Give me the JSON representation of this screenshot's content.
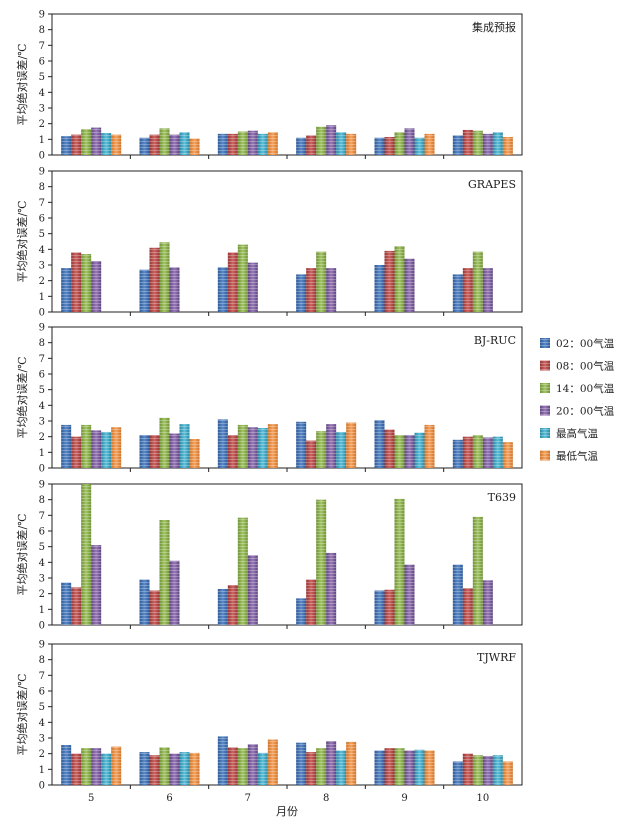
{
  "chart_data": {
    "type": "bar",
    "xlabel": "月份",
    "ylabel": "平均绝对误差/℃",
    "ylim": [
      0,
      9
    ],
    "yticks": [
      "0",
      "1",
      "2",
      "3",
      "4",
      "5",
      "6",
      "7",
      "8",
      "9"
    ],
    "categories": [
      "5",
      "6",
      "7",
      "8",
      "9",
      "10"
    ],
    "series_names": [
      "02：00气温",
      "08：00气温",
      "14：00气温",
      "20：00气温",
      "最高气温",
      "最低气温"
    ],
    "colors": {
      "c0": "#3f6fb0",
      "c1": "#b04a48",
      "c2": "#86aa48",
      "c3": "#7a5e9c",
      "c4": "#3ea3bf",
      "c5": "#e58a3f"
    },
    "panels": [
      {
        "title": "集成预报",
        "series": [
          {
            "name": "02：00气温",
            "values": [
              1.2,
              1.1,
              1.35,
              1.1,
              1.1,
              1.25
            ]
          },
          {
            "name": "08：00气温",
            "values": [
              1.3,
              1.3,
              1.35,
              1.25,
              1.15,
              1.6
            ]
          },
          {
            "name": "14：00气温",
            "values": [
              1.65,
              1.7,
              1.5,
              1.8,
              1.45,
              1.55
            ]
          },
          {
            "name": "20：00气温",
            "values": [
              1.75,
              1.3,
              1.55,
              1.9,
              1.7,
              1.35
            ]
          },
          {
            "name": "最高气温",
            "values": [
              1.4,
              1.45,
              1.35,
              1.45,
              1.1,
              1.45
            ]
          },
          {
            "name": "最低气温",
            "values": [
              1.3,
              1.05,
              1.45,
              1.35,
              1.35,
              1.15
            ]
          }
        ]
      },
      {
        "title": "GRAPES",
        "series": [
          {
            "name": "02：00气温",
            "values": [
              2.8,
              2.7,
              2.85,
              2.4,
              3.0,
              2.4
            ]
          },
          {
            "name": "08：00气温",
            "values": [
              3.8,
              4.1,
              3.8,
              2.8,
              3.9,
              2.8
            ]
          },
          {
            "name": "14：00气温",
            "values": [
              3.7,
              4.45,
              4.3,
              3.85,
              4.2,
              3.85
            ]
          },
          {
            "name": "20：00气温",
            "values": [
              3.25,
              2.85,
              3.15,
              2.8,
              3.4,
              2.8
            ]
          },
          {
            "name": "最高气温",
            "values": [
              null,
              null,
              null,
              null,
              null,
              null
            ]
          },
          {
            "name": "最低气温",
            "values": [
              null,
              null,
              null,
              null,
              null,
              null
            ]
          }
        ]
      },
      {
        "title": "BJ-RUC",
        "series": [
          {
            "name": "02：00气温",
            "values": [
              2.75,
              2.1,
              3.1,
              2.95,
              3.05,
              1.8
            ]
          },
          {
            "name": "08：00气温",
            "values": [
              2.0,
              2.1,
              2.1,
              1.75,
              2.45,
              2.0
            ]
          },
          {
            "name": "14：00气温",
            "values": [
              2.75,
              3.2,
              2.75,
              2.35,
              2.1,
              2.1
            ]
          },
          {
            "name": "20：00气温",
            "values": [
              2.4,
              2.2,
              2.6,
              2.8,
              2.1,
              1.95
            ]
          },
          {
            "name": "最高气温",
            "values": [
              2.3,
              2.8,
              2.55,
              2.3,
              2.25,
              2.0
            ]
          },
          {
            "name": "最低气温",
            "values": [
              2.6,
              1.85,
              2.8,
              2.9,
              2.75,
              1.65
            ]
          }
        ]
      },
      {
        "title": "T639",
        "series": [
          {
            "name": "02：00气温",
            "values": [
              2.7,
              2.9,
              2.3,
              1.7,
              2.2,
              3.85
            ]
          },
          {
            "name": "08：00气温",
            "values": [
              2.4,
              2.2,
              2.55,
              2.9,
              2.25,
              2.35
            ]
          },
          {
            "name": "14：00气温",
            "values": [
              9.0,
              6.7,
              6.85,
              8.0,
              8.05,
              6.9
            ]
          },
          {
            "name": "20：00气温",
            "values": [
              5.1,
              4.1,
              4.45,
              4.6,
              3.85,
              2.85
            ]
          },
          {
            "name": "最高气温",
            "values": [
              null,
              null,
              null,
              null,
              null,
              null
            ]
          },
          {
            "name": "最低气温",
            "values": [
              null,
              null,
              null,
              null,
              null,
              null
            ]
          }
        ]
      },
      {
        "title": "TJWRF",
        "series": [
          {
            "name": "02：00气温",
            "values": [
              2.55,
              2.1,
              3.1,
              2.7,
              2.2,
              1.5
            ]
          },
          {
            "name": "08：00气温",
            "values": [
              2.0,
              1.9,
              2.4,
              2.1,
              2.35,
              2.0
            ]
          },
          {
            "name": "14：00气温",
            "values": [
              2.35,
              2.4,
              2.35,
              2.35,
              2.35,
              1.9
            ]
          },
          {
            "name": "20：00气温",
            "values": [
              2.35,
              2.0,
              2.6,
              2.8,
              2.2,
              1.85
            ]
          },
          {
            "name": "最高气温",
            "values": [
              2.0,
              2.1,
              2.05,
              2.2,
              2.25,
              1.9
            ]
          },
          {
            "name": "最低气温",
            "values": [
              2.45,
              2.05,
              2.9,
              2.75,
              2.2,
              1.5
            ]
          }
        ]
      }
    ]
  }
}
